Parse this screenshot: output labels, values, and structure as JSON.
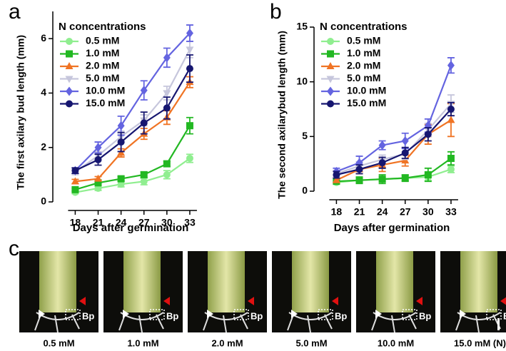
{
  "panel_labels": [
    "a",
    "b",
    "c"
  ],
  "chart_data": [
    {
      "type": "line",
      "y_label": "The first axilary bud length (mm)",
      "x_label": "Days after germination",
      "legend_title": "N concentrations",
      "legend": "upper left",
      "x": [
        18,
        21,
        24,
        27,
        30,
        33
      ],
      "xticks": [
        18,
        21,
        24,
        27,
        30,
        33
      ],
      "xlim": [
        16,
        34.5
      ],
      "ylim": [
        0,
        7
      ],
      "yticks": [
        0,
        2,
        4,
        6
      ],
      "series": [
        {
          "name": "0.5 mM",
          "color": "#90ee90",
          "marker": "circle",
          "values": [
            0.35,
            0.5,
            0.65,
            0.75,
            1.0,
            1.6
          ],
          "errors": [
            0.05,
            0.08,
            0.1,
            0.12,
            0.15,
            0.15
          ]
        },
        {
          "name": "1.0 mM",
          "color": "#22b822",
          "marker": "square",
          "values": [
            0.45,
            0.7,
            0.85,
            1.0,
            1.4,
            2.8
          ],
          "errors": [
            0.05,
            0.08,
            0.08,
            0.1,
            0.1,
            0.3
          ]
        },
        {
          "name": "2.0 mM",
          "color": "#f07424",
          "marker": "triangle-up",
          "values": [
            0.75,
            0.85,
            1.8,
            2.5,
            3.1,
            4.4
          ],
          "errors": [
            0.08,
            0.08,
            0.15,
            0.2,
            0.25,
            0.2
          ]
        },
        {
          "name": "5.0 mM",
          "color": "#c6c6dc",
          "marker": "triangle-down",
          "values": [
            1.1,
            1.7,
            2.4,
            3.0,
            4.0,
            5.6
          ],
          "errors": [
            0.1,
            0.15,
            0.2,
            0.2,
            0.25,
            0.3
          ]
        },
        {
          "name": "10.0 mM",
          "color": "#6464e0",
          "marker": "diamond",
          "values": [
            1.15,
            2.0,
            2.8,
            4.1,
            5.3,
            6.2
          ],
          "errors": [
            0.1,
            0.2,
            0.35,
            0.35,
            0.35,
            0.3
          ]
        },
        {
          "name": "15.0 mM",
          "color": "#161670",
          "marker": "circle",
          "values": [
            1.15,
            1.55,
            2.2,
            2.9,
            3.45,
            4.9
          ],
          "errors": [
            0.1,
            0.2,
            0.35,
            0.4,
            0.4,
            0.5
          ]
        }
      ]
    },
    {
      "type": "line",
      "y_label": "The second axilarybud length (mm)",
      "x_label": "Days after germination",
      "legend_title": "N concentrations",
      "legend": "upper left",
      "x": [
        18,
        21,
        24,
        27,
        30,
        33
      ],
      "xticks": [
        18,
        21,
        24,
        27,
        30,
        33
      ],
      "xlim": [
        16,
        34.5
      ],
      "ylim": [
        0,
        15
      ],
      "yticks": [
        0,
        5,
        10,
        15
      ],
      "series": [
        {
          "name": "0.5 mM",
          "color": "#90ee90",
          "marker": "circle",
          "values": [
            0.8,
            1.0,
            1.1,
            1.2,
            1.3,
            2.0
          ],
          "errors": [
            0.1,
            0.2,
            0.2,
            0.2,
            0.3,
            0.3
          ]
        },
        {
          "name": "1.0 mM",
          "color": "#22b822",
          "marker": "square",
          "values": [
            0.9,
            1.0,
            1.1,
            1.2,
            1.5,
            3.0
          ],
          "errors": [
            0.1,
            0.3,
            0.4,
            0.3,
            0.6,
            0.6
          ]
        },
        {
          "name": "2.0 mM",
          "color": "#f07424",
          "marker": "triangle-up",
          "values": [
            1.0,
            2.0,
            2.4,
            2.8,
            5.2,
            6.5
          ],
          "errors": [
            0.2,
            0.4,
            0.6,
            0.5,
            0.9,
            1.5
          ]
        },
        {
          "name": "5.0 mM",
          "color": "#c6c6dc",
          "marker": "triangle-down",
          "values": [
            1.6,
            2.3,
            2.9,
            3.4,
            5.6,
            8.0
          ],
          "errors": [
            0.3,
            0.4,
            0.4,
            0.5,
            0.6,
            0.8
          ]
        },
        {
          "name": "10.0 mM",
          "color": "#6464e0",
          "marker": "diamond",
          "values": [
            1.8,
            2.6,
            4.2,
            4.6,
            6.0,
            11.5
          ],
          "errors": [
            0.3,
            0.6,
            0.4,
            0.7,
            0.6,
            0.7
          ]
        },
        {
          "name": "15.0 mM",
          "color": "#161670",
          "marker": "circle",
          "values": [
            1.5,
            2.0,
            2.6,
            3.5,
            5.2,
            7.5
          ],
          "errors": [
            0.3,
            0.4,
            0.5,
            0.5,
            0.6,
            0.6
          ]
        }
      ]
    }
  ],
  "photos": {
    "labels": [
      "0.5 mM",
      "1.0 mM",
      "2.0 mM",
      "5.0 mM",
      "10.0 mM",
      "15.0 mM (N)"
    ],
    "annotation": "Bp"
  }
}
